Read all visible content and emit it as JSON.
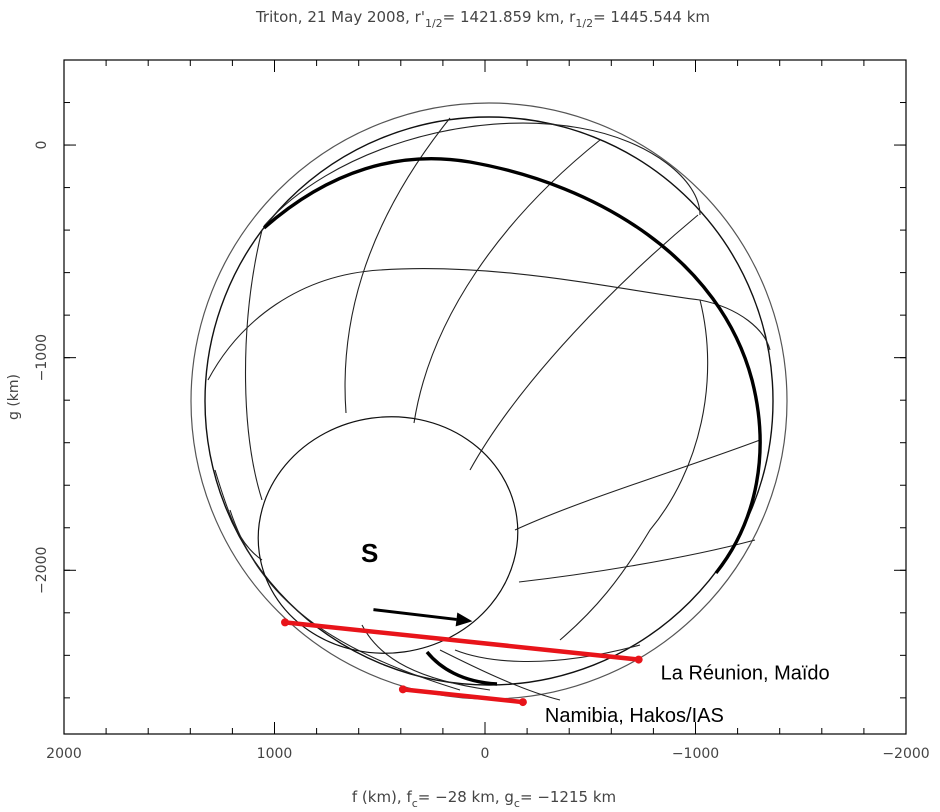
{
  "chart_data": {
    "type": "scatter",
    "title_parts": {
      "prefix": "Triton, 21 May 2008, r'",
      "sub1": "1/2",
      "mid": "= 1421.859 km, r",
      "sub2": "1/2",
      "suffix": "= 1445.544 km"
    },
    "xlabel_parts": {
      "prefix": "f (km), f",
      "sub1": "c",
      "mid": "= −28 km, g",
      "sub2": "c",
      "suffix": "= −1215 km"
    },
    "ylabel": "g (km)",
    "xlim": [
      2000,
      -2000
    ],
    "ylim": [
      -2770,
      400
    ],
    "x_ticks": [
      2000,
      1000,
      0,
      -1000,
      -2000
    ],
    "x_tick_labels": [
      "2000",
      "1000",
      "0",
      "−1000",
      "−2000"
    ],
    "y_ticks": [
      0,
      -1000,
      -2000
    ],
    "y_tick_labels": [
      "0",
      "−1000",
      "−2000"
    ],
    "grid": false,
    "disk": {
      "center": [
        -28,
        -1215
      ],
      "outer_radius_km": 1445.544,
      "inner_radius_km": 1421.859
    },
    "pole_label": "S",
    "chords": [
      {
        "name": "La Réunion, Maïdo",
        "start": [
          950,
          -2245
        ],
        "end": [
          -730,
          -2420
        ],
        "color": "#e8141a"
      },
      {
        "name": "Namibia, Hakos/IAS",
        "start": [
          390,
          -2560
        ],
        "end": [
          -180,
          -2620
        ],
        "color": "#e8141a"
      }
    ],
    "motion_arrow": {
      "start": [
        530,
        -2185
      ],
      "end": [
        60,
        -2240
      ]
    }
  }
}
